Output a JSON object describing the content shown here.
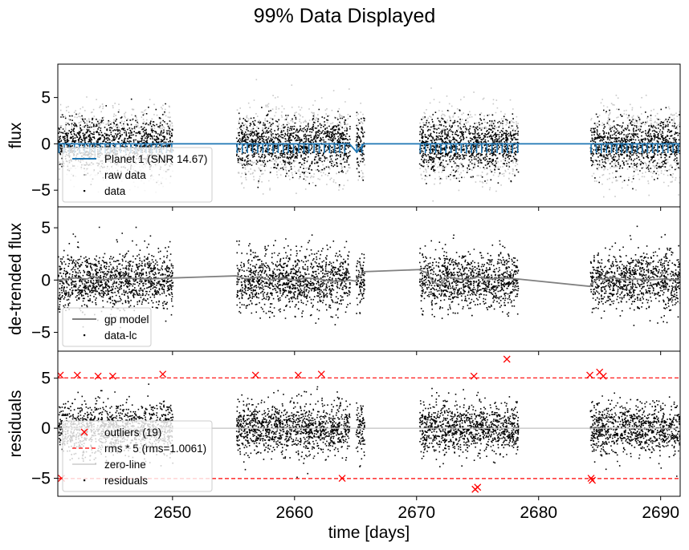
{
  "figure": {
    "title": "99% Data Displayed"
  },
  "chart_data": [
    {
      "type": "scatter",
      "id": "flux",
      "ylabel": "flux",
      "xlabel": "",
      "xlim": [
        2640.6,
        2691.6
      ],
      "ylim": [
        -6.8,
        8.6
      ],
      "yticks": [
        5,
        0,
        -5
      ],
      "xticks": [
        2650,
        2660,
        2670,
        2680,
        2690
      ],
      "data_segments": [
        [
          2640.6,
          2650.0
        ],
        [
          2655.2,
          2664.5
        ],
        [
          2665.0,
          2665.7
        ],
        [
          2670.2,
          2678.3
        ],
        [
          2684.2,
          2691.6
        ]
      ],
      "series": [
        {
          "name": "Planet 1 (SNR 14.67)",
          "kind": "line",
          "color": "#1f77b4",
          "baseline": 0.0,
          "transit_depth": -1.0,
          "transit_period": 0.42,
          "line_x": [
            2640.6,
            2664.5,
            2665.1,
            2665.7,
            2691.6
          ],
          "line_y": [
            0,
            0,
            -0.9,
            0,
            0
          ]
        },
        {
          "name": "raw data",
          "kind": "points",
          "color": "#c8c8c8",
          "spread": 1.9
        },
        {
          "name": "data",
          "kind": "points",
          "color": "#000000",
          "spread": 1.35
        }
      ],
      "legend": "lower-left"
    },
    {
      "type": "scatter",
      "id": "detrended",
      "ylabel": "de-trended flux",
      "xlabel": "",
      "xlim": [
        2640.6,
        2691.6
      ],
      "ylim": [
        -6.8,
        7.0
      ],
      "yticks": [
        5,
        0,
        -5
      ],
      "xticks": [
        2650,
        2660,
        2670,
        2680,
        2690
      ],
      "series": [
        {
          "name": "gp model",
          "kind": "line",
          "color": "#808080",
          "x": [
            2640.6,
            2642,
            2643,
            2643.5,
            2644,
            2646,
            2648,
            2650,
            2655.2,
            2656,
            2657,
            2658,
            2659,
            2660,
            2661,
            2662,
            2663,
            2664,
            2664.5,
            2665.0,
            2665.7,
            2670.2,
            2670.8,
            2671.4,
            2672.0,
            2672.5,
            2673,
            2674,
            2675,
            2676,
            2677,
            2678.3,
            2684.2,
            2684.8,
            2685.5,
            2686,
            2687,
            2688,
            2689,
            2690,
            2691.6
          ],
          "y": [
            0.0,
            0.2,
            0.1,
            0.4,
            0.0,
            0.2,
            0.1,
            0.2,
            0.4,
            0.1,
            0.3,
            0.0,
            0.2,
            0.0,
            0.2,
            0.1,
            -0.1,
            -0.1,
            0.0,
            -0.1,
            0.8,
            1.0,
            0.7,
            -0.2,
            -0.5,
            0.3,
            0.2,
            0.0,
            0.3,
            0.1,
            0.2,
            0.1,
            -0.6,
            0.2,
            0.0,
            0.3,
            0.0,
            0.1,
            0.0,
            0.1,
            0.0
          ]
        },
        {
          "name": "data-lc",
          "kind": "points",
          "color": "#000000",
          "spread": 1.35
        }
      ],
      "legend": "lower-left"
    },
    {
      "type": "scatter",
      "id": "residuals",
      "ylabel": "residuals",
      "xlabel": "time [days]",
      "xlim": [
        2640.6,
        2691.6
      ],
      "ylim": [
        -6.8,
        7.7
      ],
      "yticks": [
        5,
        0,
        -5
      ],
      "xticks": [
        2650,
        2660,
        2670,
        2680,
        2690
      ],
      "rms": 1.0061,
      "series": [
        {
          "name": "outliers (19)",
          "kind": "markers",
          "marker": "x",
          "color": "#ff0000",
          "x": [
            2640.8,
            2642.2,
            2643.9,
            2645.1,
            2649.2,
            2656.8,
            2660.3,
            2662.2,
            2640.9,
            2663.9,
            2674.7,
            2677.4,
            2674.8,
            2675.0,
            2684.2,
            2685.0,
            2685.3,
            2684.3,
            2684.4
          ],
          "y": [
            5.3,
            5.3,
            5.2,
            5.2,
            5.4,
            5.3,
            5.3,
            5.4,
            -5.0,
            -5.0,
            5.2,
            6.9,
            -6.1,
            -5.9,
            5.3,
            5.6,
            5.2,
            -5.0,
            -5.2
          ]
        },
        {
          "name": "rms * 5 (rms=1.0061)",
          "kind": "hline",
          "color": "#ff0000",
          "style": "dashed",
          "y": [
            5.03,
            -5.03
          ]
        },
        {
          "name": "zero-line",
          "kind": "hline",
          "color": "#c0c0c0",
          "style": "solid",
          "y": [
            0
          ]
        },
        {
          "name": "residuals",
          "kind": "points",
          "color": "#000000",
          "spread": 1.3
        }
      ],
      "legend": "lower-left"
    }
  ]
}
